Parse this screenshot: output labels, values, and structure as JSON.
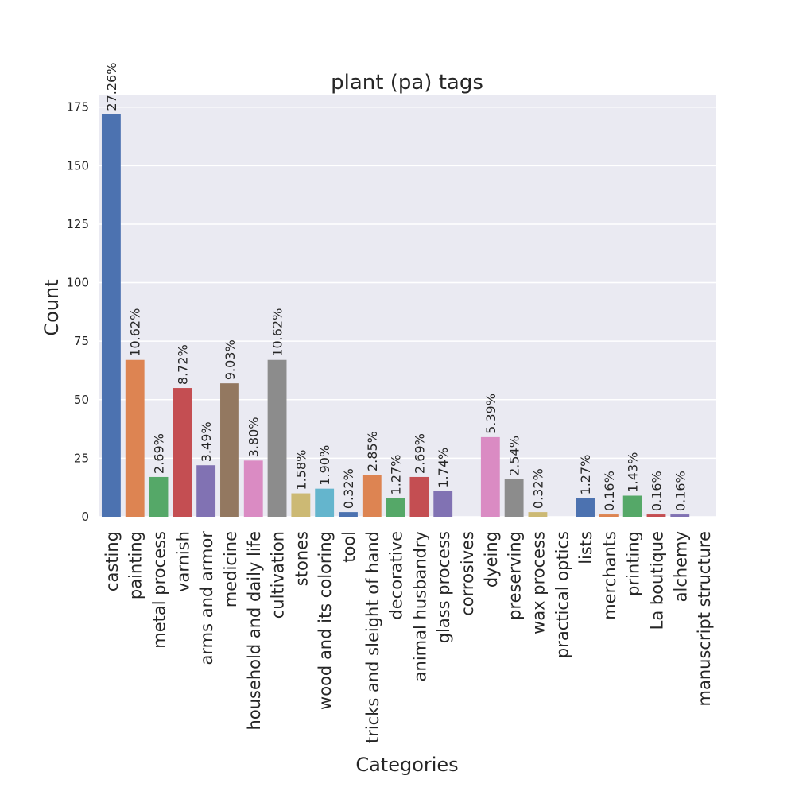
{
  "chart_data": {
    "type": "bar",
    "title": "plant (pa) tags",
    "xlabel": "Categories",
    "ylabel": "Count",
    "ylim": [
      0,
      180
    ],
    "yticks": [
      0,
      25,
      50,
      75,
      100,
      125,
      150,
      175
    ],
    "grid": true,
    "categories": [
      "casting",
      "painting",
      "metal process",
      "varnish",
      "arms and armor",
      "medicine",
      "household and daily life",
      "cultivation",
      "stones",
      "wood and its coloring",
      "tool",
      "tricks and sleight of hand",
      "decorative",
      "animal husbandry",
      "glass process",
      "corrosives",
      "dyeing",
      "preserving",
      "wax process",
      "practical optics",
      "lists",
      "merchants",
      "printing",
      "La boutique",
      "alchemy",
      "manuscript structure"
    ],
    "values": [
      172,
      67,
      17,
      55,
      22,
      57,
      24,
      67,
      10,
      12,
      2,
      18,
      8,
      17,
      11,
      0,
      34,
      16,
      2,
      0,
      8,
      1,
      9,
      1,
      1,
      0
    ],
    "labels": [
      "27.26%",
      "10.62%",
      "2.69%",
      "8.72%",
      "3.49%",
      "9.03%",
      "3.80%",
      "10.62%",
      "1.58%",
      "1.90%",
      "0.32%",
      "2.85%",
      "1.27%",
      "2.69%",
      "1.74%",
      "",
      "5.39%",
      "2.54%",
      "0.32%",
      "",
      "1.27%",
      "0.16%",
      "1.43%",
      "0.16%",
      "0.16%",
      ""
    ],
    "colors": [
      "#4c72b0",
      "#dd8452",
      "#55a868",
      "#c44e52",
      "#8172b3",
      "#937860",
      "#da8bc3",
      "#8c8c8c",
      "#ccb974",
      "#64b5cd"
    ]
  }
}
